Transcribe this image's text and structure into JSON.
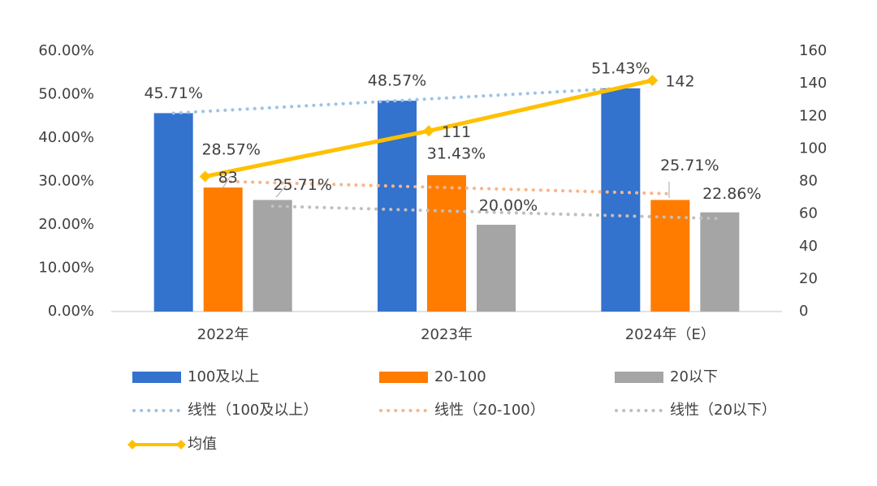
{
  "chart_data": {
    "type": "bar",
    "title": "",
    "categories": [
      "2022年",
      "2023年",
      "2024年（E）"
    ],
    "xlabel": "",
    "ylabel": "",
    "ylim": [
      0,
      60
    ],
    "y_ticks": [
      "0.00%",
      "10.00%",
      "20.00%",
      "30.00%",
      "40.00%",
      "50.00%",
      "60.00%"
    ],
    "y_tick_values": [
      0,
      10,
      20,
      30,
      40,
      50,
      60
    ],
    "y2lim": [
      0,
      160
    ],
    "y2_ticks": [
      "0",
      "20",
      "40",
      "60",
      "80",
      "100",
      "120",
      "140",
      "160"
    ],
    "y2_tick_values": [
      0,
      20,
      40,
      60,
      80,
      100,
      120,
      140,
      160
    ],
    "series": [
      {
        "name": "100及以上",
        "kind": "bar",
        "axis": "left",
        "color": "#3372CD",
        "values": [
          45.71,
          48.57,
          51.43
        ],
        "labels": [
          "45.71%",
          "48.57%",
          "51.43%"
        ]
      },
      {
        "name": "20-100",
        "kind": "bar",
        "axis": "left",
        "color": "#FF7C00",
        "values": [
          28.57,
          31.43,
          25.71
        ],
        "labels": [
          "28.57%",
          "31.43%",
          "25.71%"
        ]
      },
      {
        "name": "20以下",
        "kind": "bar",
        "axis": "left",
        "color": "#A5A5A5",
        "values": [
          25.71,
          20.0,
          22.86
        ],
        "labels": [
          "25.71%",
          "20.00%",
          "22.86%"
        ]
      },
      {
        "name": "均值",
        "kind": "line",
        "axis": "right",
        "color": "#FFC000",
        "values": [
          83,
          111,
          142
        ],
        "labels": [
          "83",
          "111",
          "142"
        ]
      }
    ],
    "trendlines": [
      {
        "name": "线性（100及以上）",
        "of": "100及以上",
        "type": "linear",
        "color": "#9DC3E6"
      },
      {
        "name": "线性（20-100）",
        "of": "20-100",
        "type": "linear",
        "color": "#F8B48A"
      },
      {
        "name": "线性（20以下）",
        "of": "20以下",
        "type": "linear",
        "color": "#BFBFBF"
      }
    ],
    "legend_position": "bottom",
    "grid": false
  }
}
